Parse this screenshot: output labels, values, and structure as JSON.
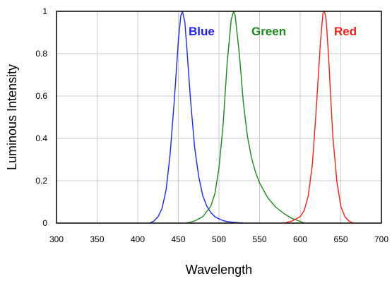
{
  "chart_data": {
    "type": "line",
    "title": "",
    "xlabel": "Wavelength",
    "ylabel": "Luminous Intensity",
    "xlim": [
      300,
      700
    ],
    "ylim": [
      0,
      1
    ],
    "x_ticks": [
      "300",
      "350",
      "400",
      "450",
      "500",
      "550",
      "600",
      "650",
      "700"
    ],
    "y_ticks": [
      "0",
      "0.2",
      "0.4",
      "0.6",
      "0.8",
      "1"
    ],
    "grid": true,
    "legend": "labels placed next to the peaks",
    "series": [
      {
        "name": "Blue",
        "color": "#2020ff",
        "x": [
          415,
          420,
          425,
          430,
          435,
          440,
          445,
          450,
          453,
          455,
          458,
          460,
          465,
          470,
          475,
          480,
          485,
          490,
          495,
          500,
          505,
          510,
          520,
          530
        ],
        "y": [
          0.0,
          0.01,
          0.03,
          0.07,
          0.16,
          0.33,
          0.58,
          0.86,
          0.98,
          1.0,
          0.95,
          0.85,
          0.58,
          0.36,
          0.22,
          0.13,
          0.08,
          0.05,
          0.03,
          0.02,
          0.012,
          0.007,
          0.003,
          0.0
        ]
      },
      {
        "name": "Green",
        "color": "#1a8a1a",
        "x": [
          460,
          470,
          480,
          490,
          495,
          500,
          505,
          510,
          515,
          518,
          520,
          525,
          530,
          535,
          540,
          545,
          550,
          560,
          570,
          580,
          590,
          600,
          605
        ],
        "y": [
          0.0,
          0.01,
          0.03,
          0.08,
          0.14,
          0.26,
          0.46,
          0.75,
          0.96,
          1.0,
          0.98,
          0.8,
          0.57,
          0.41,
          0.31,
          0.24,
          0.19,
          0.12,
          0.075,
          0.045,
          0.022,
          0.008,
          0.0
        ]
      },
      {
        "name": "Red",
        "color": "#ff1a1a",
        "x": [
          580,
          590,
          600,
          605,
          610,
          615,
          620,
          625,
          628,
          630,
          632,
          635,
          640,
          645,
          650,
          655,
          660,
          665
        ],
        "y": [
          0.0,
          0.01,
          0.03,
          0.06,
          0.13,
          0.28,
          0.55,
          0.86,
          0.99,
          1.0,
          0.96,
          0.78,
          0.42,
          0.2,
          0.08,
          0.03,
          0.01,
          0.0
        ]
      }
    ]
  }
}
